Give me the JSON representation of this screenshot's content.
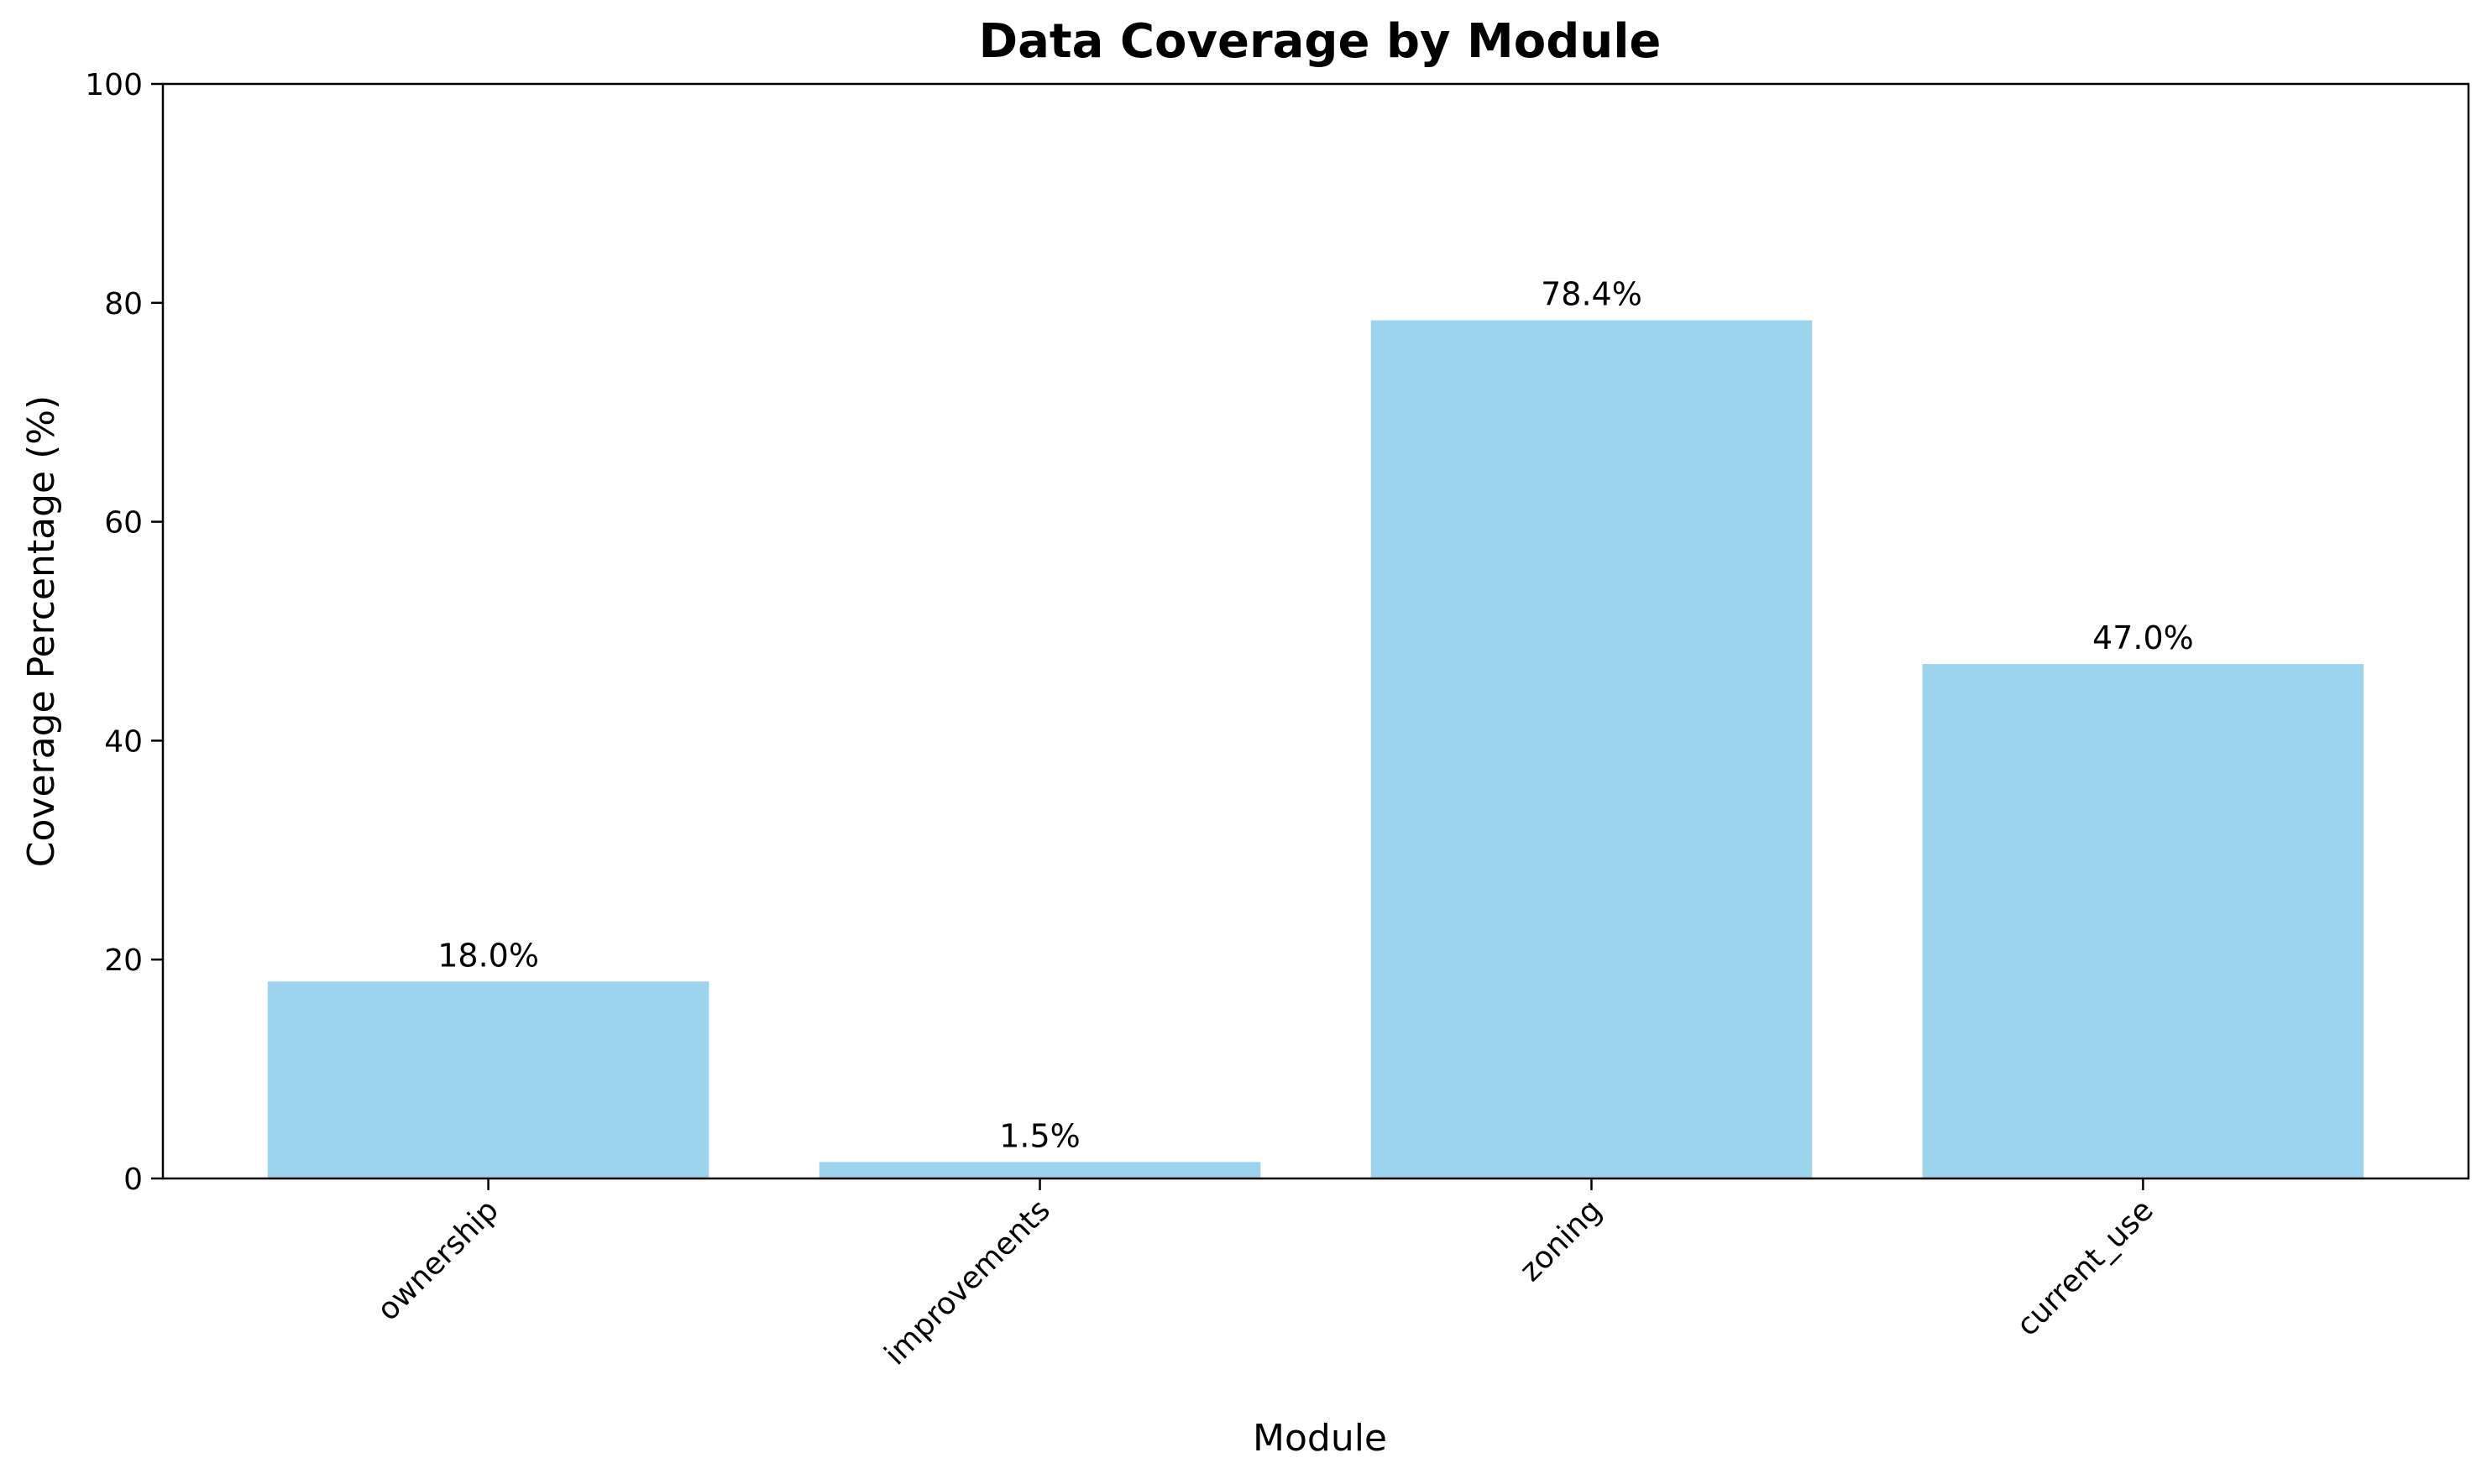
{
  "chart_data": {
    "type": "bar",
    "title": "Data Coverage by Module",
    "xlabel": "Module",
    "ylabel": "Coverage Percentage (%)",
    "categories": [
      "ownership",
      "improvements",
      "zoning",
      "current_use"
    ],
    "values": [
      18.0,
      1.5,
      78.4,
      47.0
    ],
    "value_labels": [
      "18.0%",
      "1.5%",
      "78.4%",
      "47.0%"
    ],
    "ylim": [
      0,
      100
    ],
    "yticks": [
      0,
      20,
      40,
      60,
      80,
      100
    ],
    "ytick_labels": [
      "0",
      "20",
      "40",
      "60",
      "80",
      "100"
    ],
    "grid": false,
    "bar_color": "#9dd4ed",
    "xtick_rotation_deg": 45
  }
}
